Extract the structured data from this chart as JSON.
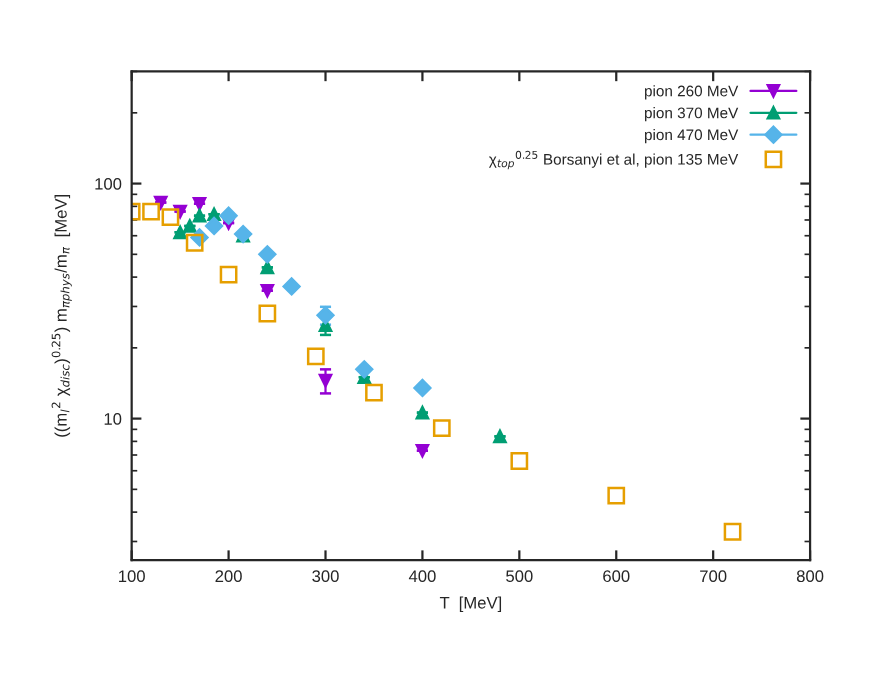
{
  "chart_data": {
    "type": "scatter",
    "xlabel": "T  [MeV]",
    "ylabel": "((m$_{l}$$^{2}$ χ$_{disc}$)$^{0.25}$) m$_{πphys}$/m$_{π}$  [MeV]",
    "log": "y",
    "xlim": [
      100,
      800
    ],
    "xticks": [
      100,
      200,
      300,
      400,
      500,
      600,
      700,
      800
    ],
    "ylim": [
      2.5,
      300
    ],
    "yticks": [
      10,
      100
    ],
    "grid": false,
    "legend": "top right",
    "series": [
      {
        "name": "pion 260 MeV",
        "color": "#9400d3",
        "marker": "triangle_down",
        "x": [
          130,
          150,
          170,
          200,
          240,
          300,
          400
        ],
        "values": [
          83,
          76,
          82,
          68,
          35,
          14.5,
          7.3
        ],
        "errors": [
          null,
          null,
          null,
          null,
          null,
          1.7,
          null
        ]
      },
      {
        "name": "pion 370 MeV",
        "color": "#009e73",
        "marker": "triangle",
        "x": [
          150,
          160,
          170,
          185,
          215,
          240,
          300,
          340,
          400,
          480
        ],
        "values": [
          62,
          66,
          73,
          74,
          60,
          44,
          25,
          15,
          10.6,
          8.4
        ],
        "errors": [
          null,
          null,
          null,
          null,
          null,
          null,
          2.3,
          null,
          null,
          null
        ]
      },
      {
        "name": "pion 470 MeV",
        "color": "#56b4e9",
        "marker": "diamond",
        "x": [
          170,
          185,
          200,
          215,
          240,
          265,
          300,
          340,
          400
        ],
        "values": [
          59,
          66,
          73,
          61,
          50,
          36.5,
          27.5,
          16.2,
          13.5
        ],
        "errors": [
          null,
          null,
          null,
          null,
          null,
          null,
          2.4,
          null,
          null
        ]
      },
      {
        "name": "χ$_{top}$$^{0.25}$ Borsanyi et al, pion 135 MeV",
        "color": "#e69f00",
        "marker": "square",
        "x": [
          100,
          120,
          140,
          165,
          200,
          240,
          290,
          350,
          420,
          500,
          600,
          720
        ],
        "values": [
          76,
          76,
          72,
          56,
          41,
          28,
          18.4,
          12.9,
          9.1,
          6.6,
          4.7,
          3.3
        ]
      }
    ]
  }
}
